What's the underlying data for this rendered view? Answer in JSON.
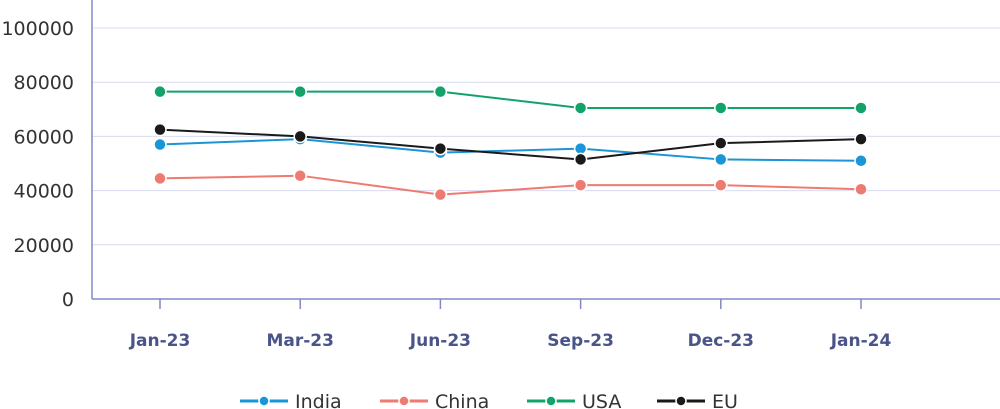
{
  "chart_data": {
    "type": "line",
    "title": "",
    "xlabel": "",
    "ylabel": "",
    "categories": [
      "Jan-23",
      "Mar-23",
      "Jun-23",
      "Sep-23",
      "Dec-23",
      "Jan-24"
    ],
    "ylim": [
      0,
      100000
    ],
    "yticks": [
      0,
      20000,
      40000,
      60000,
      80000,
      100000
    ],
    "grid": "horizontal",
    "legend_position": "bottom",
    "series": [
      {
        "name": "India",
        "color": "#1a96d6",
        "values": [
          57000,
          59000,
          54000,
          55500,
          51500,
          51000
        ]
      },
      {
        "name": "China",
        "color": "#ee7b72",
        "values": [
          44500,
          45500,
          38500,
          42000,
          42000,
          40500
        ]
      },
      {
        "name": "USA",
        "color": "#12a36b",
        "values": [
          76500,
          76500,
          76500,
          70500,
          70500,
          70500
        ]
      },
      {
        "name": "EU",
        "color": "#1a1a1a",
        "values": [
          62500,
          60000,
          55500,
          51500,
          57500,
          59000
        ]
      }
    ],
    "colors": {
      "axis": "#8088c8",
      "grid": "#d8dcf0",
      "x_tick_text": "#4a5488",
      "y_tick_text": "#333333"
    }
  }
}
